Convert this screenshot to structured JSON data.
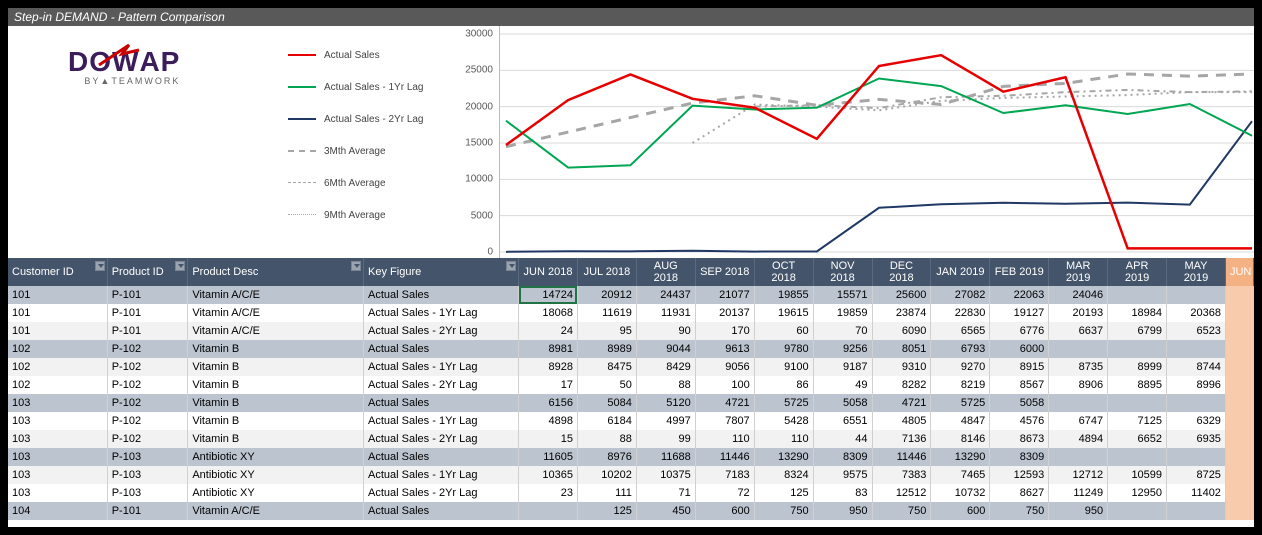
{
  "title": "Step-in DEMAND - Pattern Comparison",
  "logo": {
    "main": "DOWAP",
    "sub": "BY▲TEAMWORK"
  },
  "legend": [
    {
      "label": "Actual Sales",
      "color": "#e60000",
      "dash": "",
      "width": 2
    },
    {
      "label": "Actual Sales - 1Yr Lag",
      "color": "#00a651",
      "dash": "",
      "width": 2
    },
    {
      "label": "Actual Sales - 2Yr Lag",
      "color": "#1f3864",
      "dash": "",
      "width": 2
    },
    {
      "label": "3Mth Average",
      "color": "#a6a6a6",
      "dash": "8,6",
      "width": 2.5
    },
    {
      "label": "6Mth Average",
      "color": "#a6a6a6",
      "dash": "4,4,10,4",
      "width": 1.5
    },
    {
      "label": "9Mth Average",
      "color": "#a6a6a6",
      "dash": "2,3",
      "width": 1.5
    }
  ],
  "chart": {
    "ylim": [
      0,
      30000
    ],
    "ytick_step": 5000,
    "grid_color": "#d9d9d9",
    "background_color": "#ffffff",
    "x_count": 13,
    "series": {
      "actual": [
        14724,
        20912,
        24437,
        21077,
        19855,
        15571,
        25600,
        27082,
        22063,
        24046,
        500,
        500,
        500
      ],
      "lag1": [
        18068,
        11619,
        11931,
        20137,
        19615,
        19859,
        23874,
        22830,
        19127,
        20193,
        18984,
        20368,
        16000
      ],
      "lag2": [
        24,
        95,
        90,
        170,
        60,
        70,
        6090,
        6565,
        6776,
        6637,
        6799,
        6523,
        18000
      ],
      "avg3": [
        14500,
        16500,
        18500,
        20500,
        21500,
        20200,
        21000,
        20300,
        22800,
        23200,
        24500,
        24200,
        24500
      ],
      "avg6": [
        null,
        null,
        null,
        null,
        20000,
        20200,
        19800,
        21300,
        21500,
        22000,
        22300,
        22000,
        22100
      ],
      "avg9": [
        null,
        null,
        null,
        15000,
        20300,
        20000,
        19500,
        20800,
        21200,
        21400,
        21600,
        22000,
        22000
      ]
    }
  },
  "columns": {
    "fixed": [
      "Customer ID",
      "Product ID",
      "Product Desc",
      "Key Figure"
    ],
    "months": [
      "JUN 2018",
      "JUL 2018",
      "AUG 2018",
      "SEP 2018",
      "OCT 2018",
      "NOV 2018",
      "DEC 2018",
      "JAN 2019",
      "FEB 2019",
      "MAR 2019",
      "APR 2019",
      "MAY 2019"
    ],
    "extra": "JUN"
  },
  "rows": [
    {
      "cust": "101",
      "prod": "P-101",
      "desc": "Vitamin A/C/E",
      "kf": "Actual Sales",
      "act": true,
      "vals": [
        "14724",
        "20912",
        "24437",
        "21077",
        "19855",
        "15571",
        "25600",
        "27082",
        "22063",
        "24046",
        "",
        "",
        ""
      ]
    },
    {
      "cust": "101",
      "prod": "P-101",
      "desc": "Vitamin A/C/E",
      "kf": "Actual Sales - 1Yr Lag",
      "act": false,
      "vals": [
        "18068",
        "11619",
        "11931",
        "20137",
        "19615",
        "19859",
        "23874",
        "22830",
        "19127",
        "20193",
        "18984",
        "20368",
        ""
      ]
    },
    {
      "cust": "101",
      "prod": "P-101",
      "desc": "Vitamin A/C/E",
      "kf": "Actual Sales - 2Yr Lag",
      "act": false,
      "vals": [
        "24",
        "95",
        "90",
        "170",
        "60",
        "70",
        "6090",
        "6565",
        "6776",
        "6637",
        "6799",
        "6523",
        ""
      ]
    },
    {
      "cust": "102",
      "prod": "P-102",
      "desc": "Vitamin B",
      "kf": "Actual Sales",
      "act": true,
      "vals": [
        "8981",
        "8989",
        "9044",
        "9613",
        "9780",
        "9256",
        "8051",
        "6793",
        "6000",
        "",
        "",
        "",
        ""
      ]
    },
    {
      "cust": "102",
      "prod": "P-102",
      "desc": "Vitamin B",
      "kf": "Actual Sales - 1Yr Lag",
      "act": false,
      "vals": [
        "8928",
        "8475",
        "8429",
        "9056",
        "9100",
        "9187",
        "9310",
        "9270",
        "8915",
        "8735",
        "8999",
        "8744",
        ""
      ]
    },
    {
      "cust": "102",
      "prod": "P-102",
      "desc": "Vitamin B",
      "kf": "Actual Sales - 2Yr Lag",
      "act": false,
      "vals": [
        "17",
        "50",
        "88",
        "100",
        "86",
        "49",
        "8282",
        "8219",
        "8567",
        "8906",
        "8895",
        "8996",
        ""
      ]
    },
    {
      "cust": "103",
      "prod": "P-102",
      "desc": "Vitamin B",
      "kf": "Actual Sales",
      "act": true,
      "vals": [
        "6156",
        "5084",
        "5120",
        "4721",
        "5725",
        "5058",
        "4721",
        "5725",
        "5058",
        "",
        "",
        "",
        ""
      ]
    },
    {
      "cust": "103",
      "prod": "P-102",
      "desc": "Vitamin B",
      "kf": "Actual Sales - 1Yr Lag",
      "act": false,
      "vals": [
        "4898",
        "6184",
        "4997",
        "7807",
        "5428",
        "6551",
        "4805",
        "4847",
        "4576",
        "6747",
        "7125",
        "6329",
        ""
      ]
    },
    {
      "cust": "103",
      "prod": "P-102",
      "desc": "Vitamin B",
      "kf": "Actual Sales - 2Yr Lag",
      "act": false,
      "vals": [
        "15",
        "88",
        "99",
        "110",
        "110",
        "44",
        "7136",
        "8146",
        "8673",
        "4894",
        "6652",
        "6935",
        ""
      ]
    },
    {
      "cust": "103",
      "prod": "P-103",
      "desc": "Antibiotic XY",
      "kf": "Actual Sales",
      "act": true,
      "vals": [
        "11605",
        "8976",
        "11688",
        "11446",
        "13290",
        "8309",
        "11446",
        "13290",
        "8309",
        "",
        "",
        "",
        ""
      ]
    },
    {
      "cust": "103",
      "prod": "P-103",
      "desc": "Antibiotic XY",
      "kf": "Actual Sales - 1Yr Lag",
      "act": false,
      "vals": [
        "10365",
        "10202",
        "10375",
        "7183",
        "8324",
        "9575",
        "7383",
        "7465",
        "12593",
        "12712",
        "10599",
        "8725",
        ""
      ]
    },
    {
      "cust": "103",
      "prod": "P-103",
      "desc": "Antibiotic XY",
      "kf": "Actual Sales - 2Yr Lag",
      "act": false,
      "vals": [
        "23",
        "111",
        "71",
        "72",
        "125",
        "83",
        "12512",
        "10732",
        "8627",
        "11249",
        "12950",
        "11402",
        ""
      ]
    },
    {
      "cust": "104",
      "prod": "P-101",
      "desc": "Vitamin A/C/E",
      "kf": "Actual Sales",
      "act": true,
      "vals": [
        "",
        "125",
        "450",
        "600",
        "750",
        "950",
        "750",
        "600",
        "750",
        "950",
        "",
        "",
        ""
      ]
    }
  ],
  "col_widths": {
    "cust": 96,
    "prod": 78,
    "desc": 170,
    "kf": 150,
    "month": 57,
    "extra": 27
  }
}
